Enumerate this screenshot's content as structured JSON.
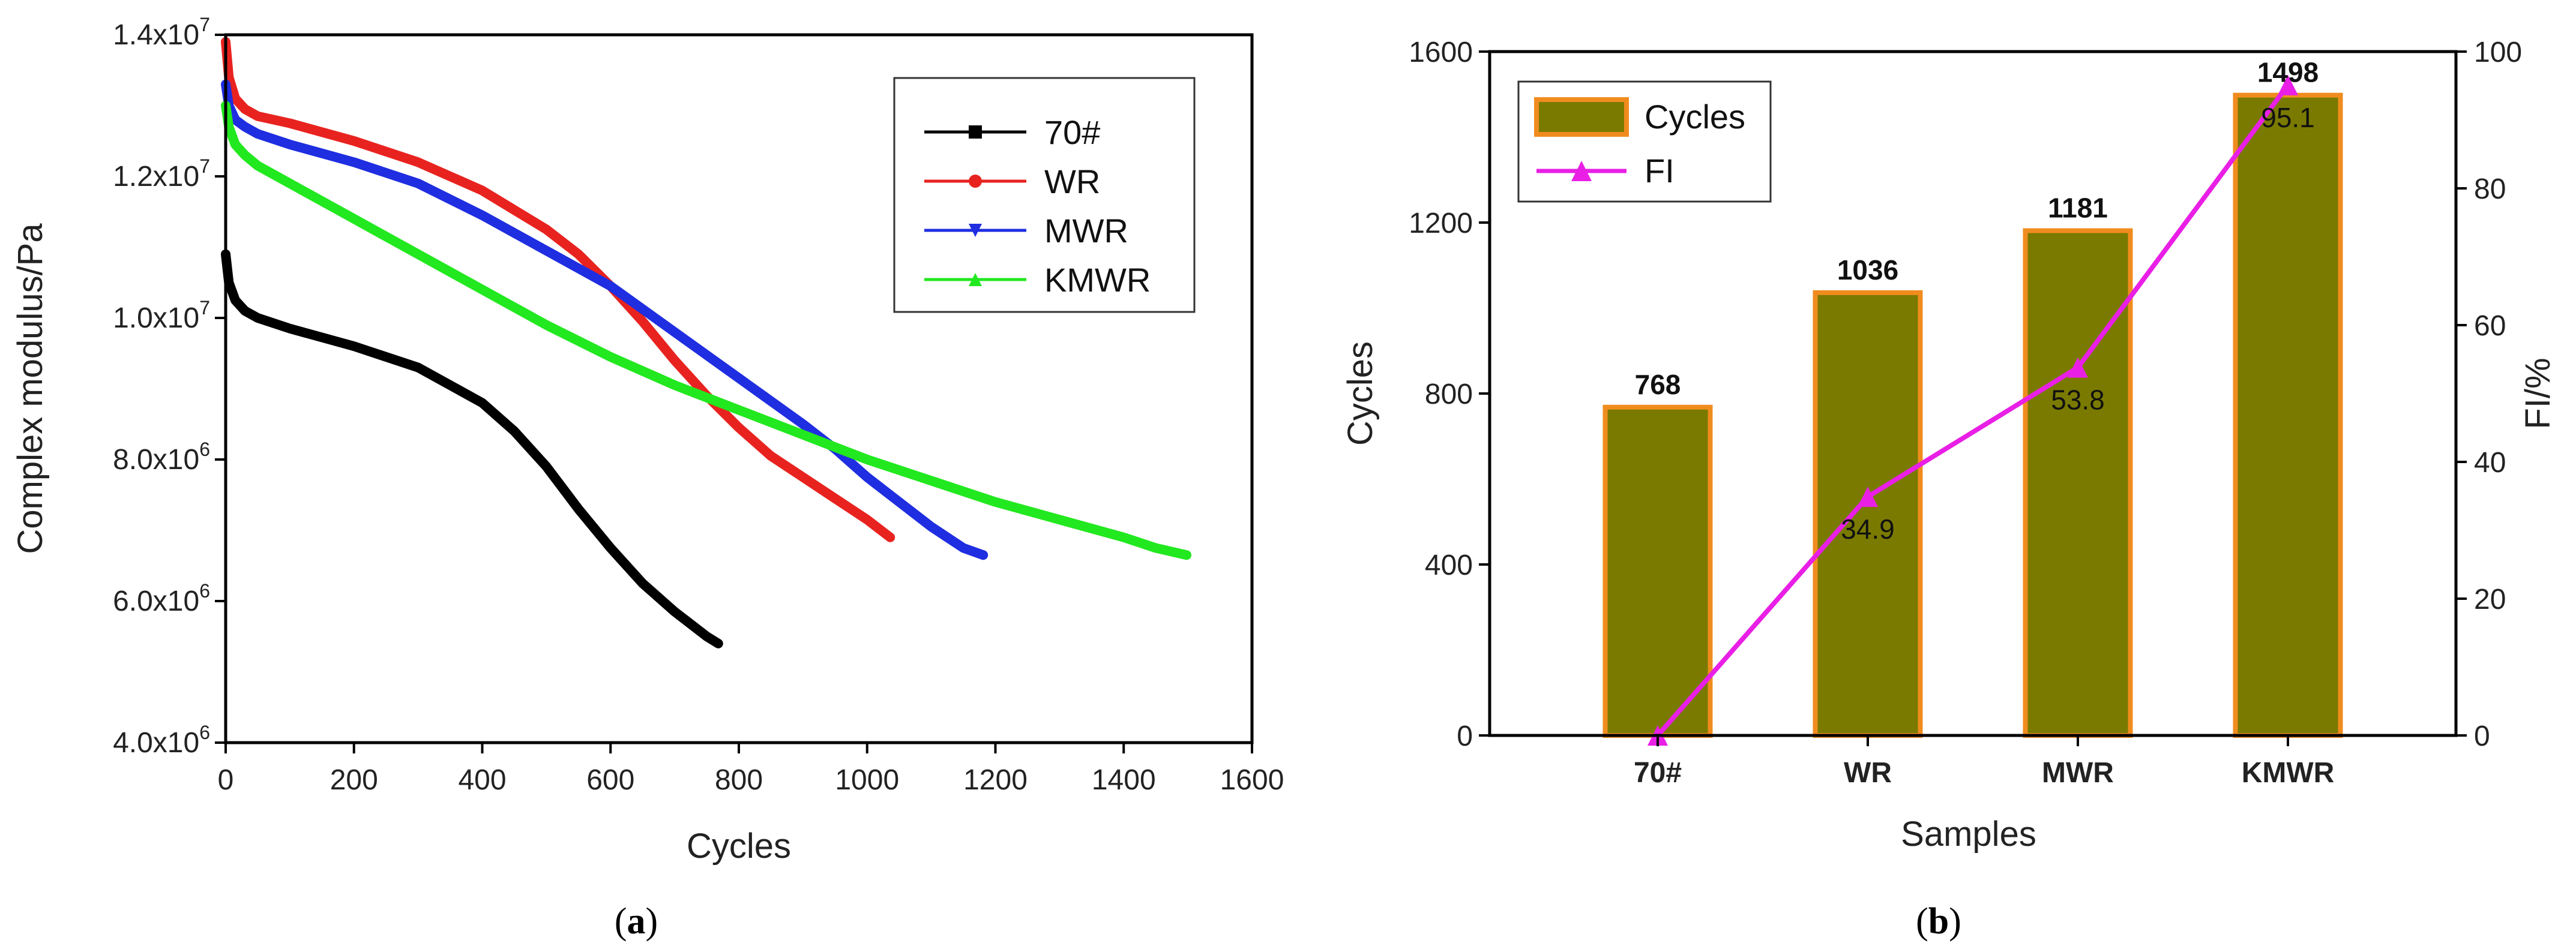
{
  "chart_data": [
    {
      "id": "a",
      "type": "line",
      "caption": "a",
      "xlabel": "Cycles",
      "ylabel": "Complex modulus/Pa",
      "xlim": [
        0,
        1600
      ],
      "ylim": [
        4000000,
        14000000
      ],
      "xticks": [
        "0",
        "200",
        "400",
        "600",
        "800",
        "1000",
        "1200",
        "1400",
        "1600"
      ],
      "yticks": [
        {
          "base": "4.0x10",
          "exp": "6",
          "value": 4000000
        },
        {
          "base": "6.0x10",
          "exp": "6",
          "value": 6000000
        },
        {
          "base": "8.0x10",
          "exp": "6",
          "value": 8000000
        },
        {
          "base": "1.0x10",
          "exp": "7",
          "value": 10000000
        },
        {
          "base": "1.2x10",
          "exp": "7",
          "value": 12000000
        },
        {
          "base": "1.4x10",
          "exp": "7",
          "value": 14000000
        }
      ],
      "legend_position": "top-right",
      "series": [
        {
          "name": "70#",
          "color": "#000000",
          "marker": "square",
          "x": [
            0,
            5,
            15,
            30,
            50,
            100,
            200,
            300,
            350,
            400,
            450,
            500,
            550,
            600,
            650,
            700,
            750,
            768
          ],
          "y": [
            10900000,
            10500000,
            10250000,
            10100000,
            10000000,
            9850000,
            9600000,
            9300000,
            9050000,
            8800000,
            8400000,
            7900000,
            7300000,
            6750000,
            6250000,
            5850000,
            5500000,
            5400000
          ]
        },
        {
          "name": "WR",
          "color": "#e8231f",
          "marker": "circle",
          "x": [
            0,
            5,
            15,
            30,
            50,
            100,
            200,
            300,
            400,
            500,
            550,
            600,
            650,
            700,
            750,
            800,
            850,
            900,
            950,
            1000,
            1036
          ],
          "y": [
            13900000,
            13400000,
            13100000,
            12950000,
            12850000,
            12750000,
            12500000,
            12200000,
            11800000,
            11250000,
            10900000,
            10450000,
            9950000,
            9400000,
            8900000,
            8450000,
            8050000,
            7750000,
            7450000,
            7150000,
            6900000
          ]
        },
        {
          "name": "MWR",
          "color": "#1f2ee0",
          "marker": "triangle-down",
          "x": [
            0,
            5,
            15,
            30,
            50,
            100,
            200,
            300,
            400,
            500,
            600,
            700,
            800,
            900,
            950,
            1000,
            1050,
            1100,
            1150,
            1181
          ],
          "y": [
            13300000,
            13000000,
            12800000,
            12700000,
            12600000,
            12450000,
            12200000,
            11900000,
            11450000,
            10950000,
            10450000,
            9800000,
            9150000,
            8500000,
            8150000,
            7750000,
            7400000,
            7050000,
            6750000,
            6650000
          ]
        },
        {
          "name": "KMWR",
          "color": "#22e81f",
          "marker": "triangle-up",
          "x": [
            0,
            5,
            15,
            30,
            50,
            100,
            200,
            300,
            400,
            500,
            600,
            700,
            800,
            900,
            1000,
            1100,
            1200,
            1300,
            1400,
            1450,
            1498
          ],
          "y": [
            13000000,
            12700000,
            12450000,
            12300000,
            12150000,
            11900000,
            11400000,
            10900000,
            10400000,
            9900000,
            9450000,
            9050000,
            8700000,
            8350000,
            8000000,
            7700000,
            7400000,
            7150000,
            6900000,
            6750000,
            6650000
          ]
        }
      ]
    },
    {
      "id": "b",
      "type": "bar",
      "caption": "b",
      "xlabel": "Samples",
      "ylabel": "Cycles",
      "y2label": "FI/%",
      "categories": [
        "70#",
        "WR",
        "MWR",
        "KMWR"
      ],
      "ylim": [
        0,
        1600
      ],
      "y2lim": [
        0,
        100
      ],
      "yticks": [
        "0",
        "400",
        "800",
        "1200",
        "1600"
      ],
      "y2ticks": [
        "0",
        "20",
        "40",
        "60",
        "80",
        "100"
      ],
      "legend_position": "top-left",
      "series": [
        {
          "name": "Cycles",
          "axis": "left",
          "kind": "bar",
          "fill": "#7a7a00",
          "edge": "#f08c1e",
          "values": [
            768,
            1036,
            1181,
            1498
          ],
          "labels": [
            "768",
            "1036",
            "1181",
            "1498"
          ]
        },
        {
          "name": "FI",
          "axis": "right",
          "kind": "line",
          "color": "#e91fe6",
          "marker": "triangle-up",
          "values": [
            0,
            34.9,
            53.8,
            95.1
          ],
          "labels": [
            "",
            "34.9",
            "53.8",
            "95.1"
          ]
        }
      ]
    }
  ]
}
